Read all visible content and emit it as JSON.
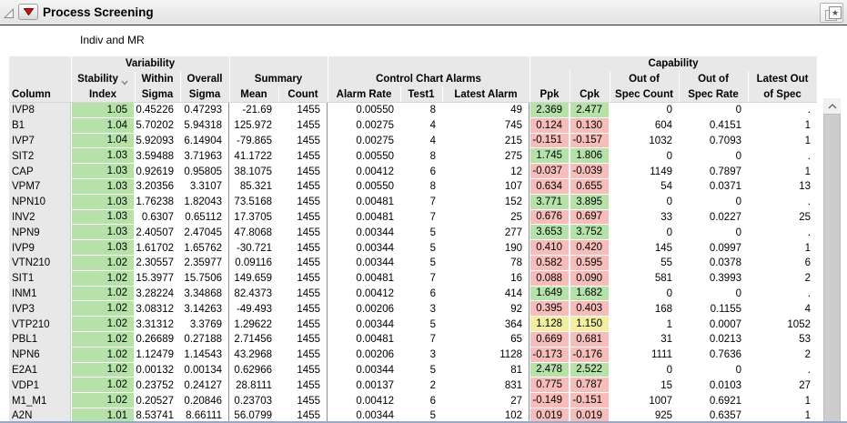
{
  "window": {
    "title": "Process Screening",
    "subtitle": "Indiv and MR"
  },
  "icons": {
    "disclosure": "open-outline-triangle",
    "menu": "red-triangle-down",
    "titlebar_right": "layered-pages-star",
    "sort": "chevron-down",
    "scroll_up": "chevron-up"
  },
  "colors": {
    "good_green": "#b6e2aa",
    "bad_red": "#f6bdba",
    "warn_yellow": "#f2eda0",
    "header_bg": "#e8e8e8"
  },
  "table": {
    "group_headers": {
      "variability": "Variability",
      "summary": "Summary",
      "control_chart_alarms": "Control Chart Alarms",
      "capability": "Capability"
    },
    "headers": {
      "column": "Column",
      "stability_l1": "Stability",
      "stability_l2": "Index",
      "within_l1": "Within",
      "within_l2": "Sigma",
      "overall_l1": "Overall",
      "overall_l2": "Sigma",
      "mean": "Mean",
      "count": "Count",
      "alarm_rate": "Alarm Rate",
      "test1": "Test1",
      "latest_alarm": "Latest Alarm",
      "ppk": "Ppk",
      "cpk": "Cpk",
      "oos_count_l1": "Out of",
      "oos_count_l2": "Spec Count",
      "oos_rate_l1": "Out of",
      "oos_rate_l2": "Spec Rate",
      "latest_oos_l1": "Latest Out",
      "latest_oos_l2": "of Spec"
    },
    "rows": [
      [
        "IVP8",
        "1.05",
        "0.45226",
        "0.47293",
        "-21.69",
        "1455",
        "0.00550",
        "8",
        "49",
        "2.369",
        "2.477",
        "green",
        "0",
        "0",
        "."
      ],
      [
        "B1",
        "1.04",
        "5.70202",
        "5.94318",
        "125.972",
        "1455",
        "0.00275",
        "4",
        "745",
        "0.124",
        "0.130",
        "red",
        "604",
        "0.4151",
        "1"
      ],
      [
        "IVP7",
        "1.04",
        "5.92093",
        "6.14904",
        "-79.865",
        "1455",
        "0.00275",
        "4",
        "215",
        "-0.151",
        "-0.157",
        "red",
        "1032",
        "0.7093",
        "1"
      ],
      [
        "SIT2",
        "1.03",
        "3.59488",
        "3.71963",
        "41.1722",
        "1455",
        "0.00550",
        "8",
        "275",
        "1.745",
        "1.806",
        "green",
        "0",
        "0",
        "."
      ],
      [
        "CAP",
        "1.03",
        "0.92619",
        "0.95805",
        "38.1075",
        "1455",
        "0.00412",
        "6",
        "12",
        "-0.037",
        "-0.039",
        "red",
        "1149",
        "0.7897",
        "1"
      ],
      [
        "VPM7",
        "1.03",
        "3.20356",
        "3.3107",
        "85.321",
        "1455",
        "0.00550",
        "8",
        "107",
        "0.634",
        "0.655",
        "red",
        "54",
        "0.0371",
        "13"
      ],
      [
        "NPN10",
        "1.03",
        "1.76238",
        "1.82043",
        "73.5168",
        "1455",
        "0.00481",
        "7",
        "152",
        "3.771",
        "3.895",
        "green",
        "0",
        "0",
        "."
      ],
      [
        "INV2",
        "1.03",
        "0.6307",
        "0.65112",
        "17.3705",
        "1455",
        "0.00481",
        "7",
        "25",
        "0.676",
        "0.697",
        "red",
        "33",
        "0.0227",
        "25"
      ],
      [
        "NPN9",
        "1.03",
        "2.40507",
        "2.47045",
        "47.8068",
        "1455",
        "0.00344",
        "5",
        "277",
        "3.653",
        "3.752",
        "green",
        "0",
        "0",
        "."
      ],
      [
        "IVP9",
        "1.03",
        "1.61702",
        "1.65762",
        "-30.721",
        "1455",
        "0.00344",
        "5",
        "190",
        "0.410",
        "0.420",
        "red",
        "145",
        "0.0997",
        "1"
      ],
      [
        "VTN210",
        "1.02",
        "2.30557",
        "2.35977",
        "0.09116",
        "1455",
        "0.00344",
        "5",
        "78",
        "0.582",
        "0.595",
        "red",
        "55",
        "0.0378",
        "6"
      ],
      [
        "SIT1",
        "1.02",
        "15.3977",
        "15.7506",
        "149.659",
        "1455",
        "0.00481",
        "7",
        "16",
        "0.088",
        "0.090",
        "red",
        "581",
        "0.3993",
        "2"
      ],
      [
        "INM1",
        "1.02",
        "3.28224",
        "3.34868",
        "82.4373",
        "1455",
        "0.00412",
        "6",
        "414",
        "1.649",
        "1.682",
        "green",
        "0",
        "0",
        "."
      ],
      [
        "IVP3",
        "1.02",
        "3.08312",
        "3.14263",
        "-49.493",
        "1455",
        "0.00206",
        "3",
        "92",
        "0.395",
        "0.403",
        "red",
        "168",
        "0.1155",
        "4"
      ],
      [
        "VTP210",
        "1.02",
        "3.31312",
        "3.3769",
        "1.29622",
        "1455",
        "0.00344",
        "5",
        "364",
        "1.128",
        "1.150",
        "yellow",
        "1",
        "0.0007",
        "1052"
      ],
      [
        "PBL1",
        "1.02",
        "0.26689",
        "0.27188",
        "2.71456",
        "1455",
        "0.00481",
        "7",
        "65",
        "0.669",
        "0.681",
        "red",
        "31",
        "0.0213",
        "53"
      ],
      [
        "NPN6",
        "1.02",
        "1.12479",
        "1.14543",
        "43.2968",
        "1455",
        "0.00206",
        "3",
        "1128",
        "-0.173",
        "-0.176",
        "red",
        "1111",
        "0.7636",
        "2"
      ],
      [
        "E2A1",
        "1.02",
        "0.00132",
        "0.00134",
        "0.62966",
        "1455",
        "0.00344",
        "5",
        "81",
        "2.478",
        "2.522",
        "green",
        "0",
        "0",
        "."
      ],
      [
        "VDP1",
        "1.02",
        "0.23752",
        "0.24127",
        "28.8111",
        "1455",
        "0.00137",
        "2",
        "831",
        "0.775",
        "0.787",
        "red",
        "15",
        "0.0103",
        "27"
      ],
      [
        "M1_M1",
        "1.02",
        "0.20527",
        "0.20846",
        "0.23703",
        "1455",
        "0.00412",
        "6",
        "27",
        "-0.149",
        "-0.151",
        "red",
        "1007",
        "0.6921",
        "1"
      ],
      [
        "A2N",
        "1.01",
        "8.53741",
        "8.66111",
        "56.0799",
        "1455",
        "0.00344",
        "5",
        "102",
        "0.019",
        "0.019",
        "red",
        "925",
        "0.6357",
        "1"
      ]
    ]
  }
}
